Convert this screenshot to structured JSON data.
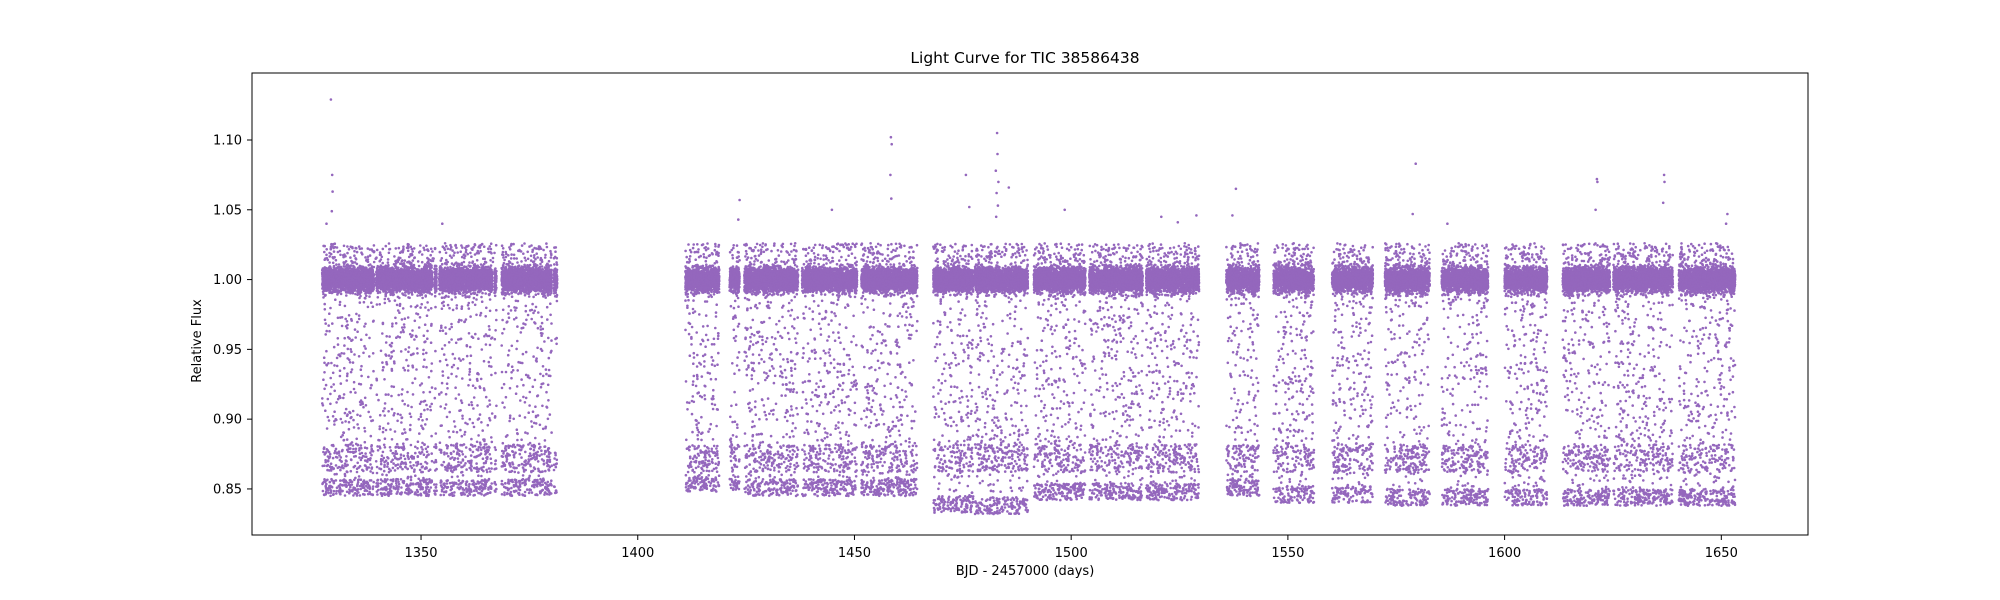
{
  "chart_data": {
    "type": "scatter",
    "title": "Light Curve for TIC 38586438",
    "xlabel": "BJD - 2457000 (days)",
    "ylabel": "Relative Flux",
    "xlim": [
      1311,
      1670
    ],
    "ylim": [
      0.817,
      1.148
    ],
    "xticks": [
      1350,
      1400,
      1450,
      1500,
      1550,
      1600,
      1650
    ],
    "yticks": [
      0.85,
      0.9,
      0.95,
      1.0,
      1.05,
      1.1
    ],
    "ytick_labels": [
      "0.85",
      "0.90",
      "0.95",
      "1.00",
      "1.05",
      "1.10"
    ],
    "grid": false,
    "marker_color": "#9467bd",
    "segments": [
      {
        "start": 1327.2,
        "end": 1340.2,
        "gaps": [
          1339.4
        ],
        "low": 0.845
      },
      {
        "start": 1340.4,
        "end": 1353.6,
        "gaps": [
          1352.8
        ],
        "low": 0.845
      },
      {
        "start": 1354.2,
        "end": 1367.4,
        "gaps": [
          1366.7
        ],
        "low": 0.845
      },
      {
        "start": 1368.6,
        "end": 1381.4,
        "gaps": [
          1380.4
        ],
        "low": 0.845
      },
      {
        "start": 1411.0,
        "end": 1418.8,
        "gaps": [],
        "low": 0.848
      },
      {
        "start": 1421.2,
        "end": 1423.5,
        "gaps": [],
        "low": 0.848
      },
      {
        "start": 1424.6,
        "end": 1437.0,
        "gaps": [],
        "low": 0.845
      },
      {
        "start": 1437.9,
        "end": 1450.6,
        "gaps": [],
        "low": 0.845
      },
      {
        "start": 1451.6,
        "end": 1464.5,
        "gaps": [],
        "low": 0.845
      },
      {
        "start": 1468.2,
        "end": 1477.4,
        "gaps": [],
        "low": 0.833
      },
      {
        "start": 1477.8,
        "end": 1490.0,
        "gaps": [],
        "low": 0.832
      },
      {
        "start": 1491.4,
        "end": 1503.3,
        "gaps": [],
        "low": 0.842
      },
      {
        "start": 1504.2,
        "end": 1516.5,
        "gaps": [],
        "low": 0.842
      },
      {
        "start": 1517.3,
        "end": 1529.5,
        "gaps": [],
        "low": 0.842
      },
      {
        "start": 1535.8,
        "end": 1543.4,
        "gaps": [],
        "low": 0.845
      },
      {
        "start": 1546.7,
        "end": 1556.0,
        "gaps": [],
        "low": 0.84
      },
      {
        "start": 1560.2,
        "end": 1569.6,
        "gaps": [],
        "low": 0.84
      },
      {
        "start": 1572.4,
        "end": 1582.7,
        "gaps": [],
        "low": 0.838
      },
      {
        "start": 1585.5,
        "end": 1596.2,
        "gaps": [],
        "low": 0.838
      },
      {
        "start": 1600.0,
        "end": 1609.8,
        "gaps": [],
        "low": 0.838
      },
      {
        "start": 1613.4,
        "end": 1624.3,
        "gaps": [],
        "low": 0.838
      },
      {
        "start": 1625.1,
        "end": 1638.8,
        "gaps": [],
        "low": 0.838
      },
      {
        "start": 1640.2,
        "end": 1653.2,
        "gaps": [],
        "low": 0.838
      }
    ],
    "outliers": [
      {
        "x": 1329.2,
        "y": 1.129
      },
      {
        "x": 1329.5,
        "y": 1.075
      },
      {
        "x": 1329.6,
        "y": 1.063
      },
      {
        "x": 1329.4,
        "y": 1.049
      },
      {
        "x": 1328.2,
        "y": 1.04
      },
      {
        "x": 1354.9,
        "y": 1.04
      },
      {
        "x": 1423.5,
        "y": 1.057
      },
      {
        "x": 1423.2,
        "y": 1.043
      },
      {
        "x": 1444.8,
        "y": 1.05
      },
      {
        "x": 1458.4,
        "y": 1.102
      },
      {
        "x": 1458.6,
        "y": 1.097
      },
      {
        "x": 1458.3,
        "y": 1.075
      },
      {
        "x": 1458.5,
        "y": 1.058
      },
      {
        "x": 1475.7,
        "y": 1.075
      },
      {
        "x": 1476.5,
        "y": 1.052
      },
      {
        "x": 1482.9,
        "y": 1.105
      },
      {
        "x": 1483.0,
        "y": 1.09
      },
      {
        "x": 1482.6,
        "y": 1.078
      },
      {
        "x": 1483.2,
        "y": 1.07
      },
      {
        "x": 1482.8,
        "y": 1.062
      },
      {
        "x": 1483.1,
        "y": 1.053
      },
      {
        "x": 1482.7,
        "y": 1.045
      },
      {
        "x": 1485.6,
        "y": 1.066
      },
      {
        "x": 1498.5,
        "y": 1.05
      },
      {
        "x": 1520.8,
        "y": 1.045
      },
      {
        "x": 1528.9,
        "y": 1.046
      },
      {
        "x": 1524.6,
        "y": 1.041
      },
      {
        "x": 1538.0,
        "y": 1.065
      },
      {
        "x": 1537.2,
        "y": 1.046
      },
      {
        "x": 1579.5,
        "y": 1.083
      },
      {
        "x": 1578.8,
        "y": 1.047
      },
      {
        "x": 1586.8,
        "y": 1.04
      },
      {
        "x": 1621.3,
        "y": 1.072
      },
      {
        "x": 1621.4,
        "y": 1.07
      },
      {
        "x": 1621.0,
        "y": 1.05
      },
      {
        "x": 1636.8,
        "y": 1.075
      },
      {
        "x": 1636.9,
        "y": 1.07
      },
      {
        "x": 1636.6,
        "y": 1.055
      },
      {
        "x": 1651.4,
        "y": 1.047
      },
      {
        "x": 1651.1,
        "y": 1.04
      }
    ]
  }
}
